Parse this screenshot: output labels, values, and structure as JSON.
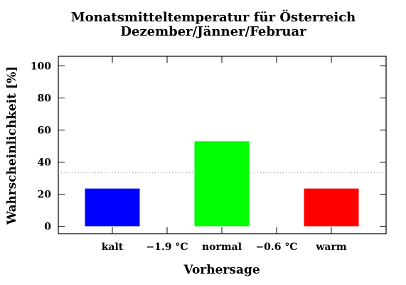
{
  "chart_data": {
    "type": "bar",
    "title": "Monatsmitteltemperatur für Österreich",
    "subtitle": "Dezember/Jänner/Februar",
    "xlabel": "Vorhersage",
    "ylabel": "Wahrscheinlichkeit [%]",
    "ylim": [
      0,
      105
    ],
    "yticks": [
      0,
      20,
      40,
      60,
      80,
      100
    ],
    "categories": [
      "kalt",
      "normal",
      "warm"
    ],
    "values": [
      23.5,
      53,
      23.5
    ],
    "colors": [
      "#0000ff",
      "#00ff00",
      "#ff0000"
    ],
    "x_tick_labels": [
      "kalt",
      "−1.9 °C",
      "normal",
      "−0.6 °C",
      "warm"
    ],
    "reference_line": {
      "value": 33.3,
      "style": "dotted"
    },
    "grid": false,
    "legend": "none"
  }
}
